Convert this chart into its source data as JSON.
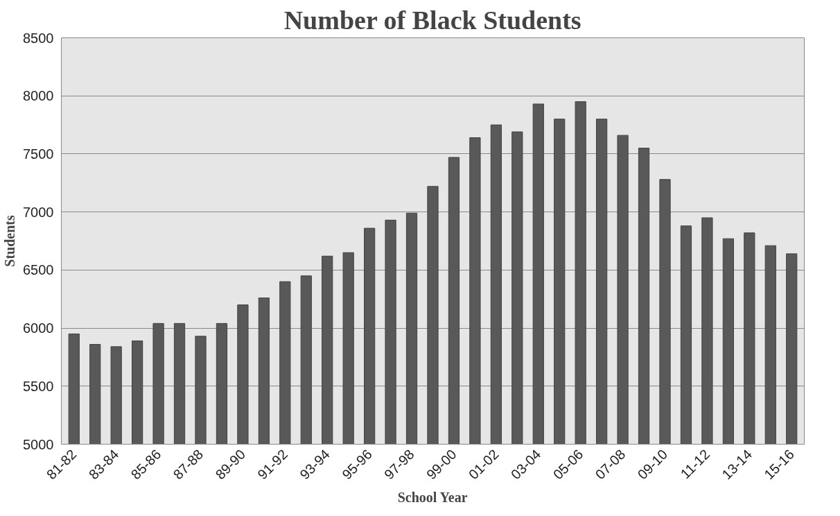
{
  "chart_data": {
    "type": "bar",
    "title": "Number of Black Students",
    "xlabel": "School Year",
    "ylabel": "Students",
    "categories": [
      "81-82",
      null,
      "83-84",
      null,
      "85-86",
      null,
      "87-88",
      null,
      "89-90",
      null,
      "91-92",
      null,
      "93-94",
      null,
      "95-96",
      null,
      "97-98",
      null,
      "99-00",
      null,
      "01-02",
      null,
      "03-04",
      null,
      "05-06",
      null,
      "07-08",
      null,
      "09-10",
      null,
      "11-12",
      null,
      "13-14",
      null,
      "15-16"
    ],
    "values": [
      5950,
      5860,
      5840,
      5890,
      6040,
      6040,
      5930,
      6040,
      6200,
      6260,
      6400,
      6450,
      6620,
      6650,
      6860,
      6930,
      6990,
      7220,
      7470,
      7640,
      7750,
      7690,
      7930,
      7800,
      7950,
      7800,
      7660,
      7550,
      7280,
      6880,
      6950,
      6770,
      6820,
      6710,
      6640
    ],
    "color": "#595959",
    "ylim": [
      5000,
      8500
    ],
    "yticks": [
      5000,
      5500,
      6000,
      6500,
      7000,
      7500,
      8000,
      8500
    ],
    "grid": "y"
  }
}
